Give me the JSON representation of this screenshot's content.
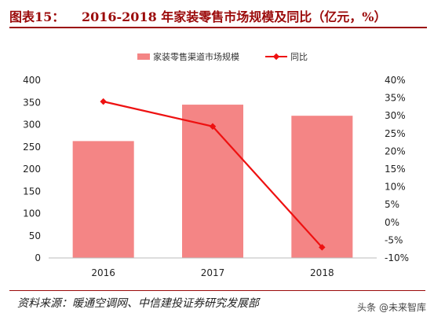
{
  "figure": {
    "label": "图表15：",
    "title": "2016-2018 年家装零售市场规模及同比（亿元，%）"
  },
  "source": "资料来源：暖通空调网、中信建投证券研究发展部",
  "watermark": "头条 @未来智库",
  "colors": {
    "bar": "#f48585",
    "line": "#ee1111",
    "title": "#9b0a0a"
  },
  "chart_data": {
    "type": "bar+line",
    "categories": [
      "2016",
      "2017",
      "2018"
    ],
    "series": [
      {
        "name": "家装零售渠道市场规模",
        "type": "bar",
        "axis": "left",
        "values": [
          263,
          345,
          320
        ]
      },
      {
        "name": "同比",
        "type": "line",
        "axis": "right",
        "values": [
          34,
          27,
          -7
        ]
      }
    ],
    "y_left": {
      "min": 0,
      "max": 400,
      "step": 50,
      "ticks": [
        "0",
        "50",
        "100",
        "150",
        "200",
        "250",
        "300",
        "350",
        "400"
      ]
    },
    "y_right": {
      "min": -10,
      "max": 40,
      "step": 5,
      "ticks": [
        "-10%",
        "-5%",
        "0%",
        "5%",
        "10%",
        "15%",
        "20%",
        "25%",
        "30%",
        "35%",
        "40%"
      ]
    },
    "legend_position": "top",
    "grid": false
  }
}
